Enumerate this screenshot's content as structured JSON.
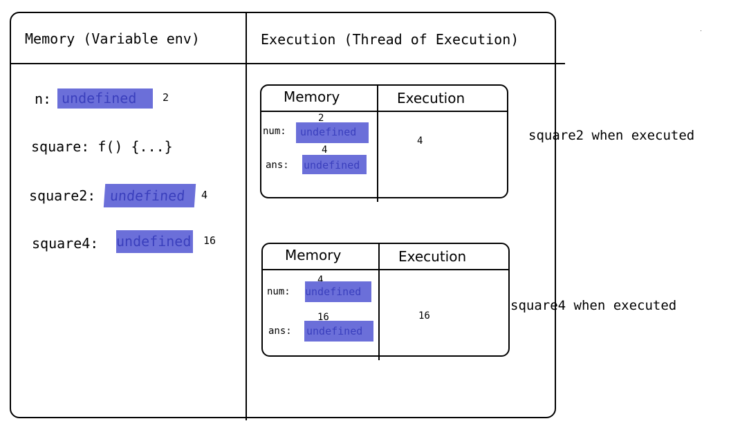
{
  "main": {
    "memory_header": "Memory (Variable env)",
    "execution_header": "Execution (Thread of Execution)"
  },
  "global_memory": [
    {
      "name": "n:",
      "value": "undefined",
      "result": "2"
    },
    {
      "name": "square: f() {...}"
    },
    {
      "name": "square2:",
      "value": "undefined",
      "result": "4"
    },
    {
      "name": "square4:",
      "value": "undefined",
      "result": "16"
    }
  ],
  "context_square2": {
    "memory_header": "Memory",
    "execution_header": "Execution",
    "num_label": "num:",
    "num_value": "undefined",
    "num_result": "2",
    "ans_label": "ans:",
    "ans_value": "undefined",
    "ans_result": "4",
    "execution_value": "4",
    "caption": "square2 when executed"
  },
  "context_square4": {
    "memory_header": "Memory",
    "execution_header": "Execution",
    "num_label": "num:",
    "num_value": "undefined",
    "num_result": "4",
    "ans_label": "ans:",
    "ans_value": "undefined",
    "ans_result": "16",
    "execution_value": "16",
    "caption": "square4 when executed"
  },
  "colors": {
    "highlight": "#6b6fd9",
    "highlight_text": "#3a3fbd",
    "stroke": "#000000"
  }
}
